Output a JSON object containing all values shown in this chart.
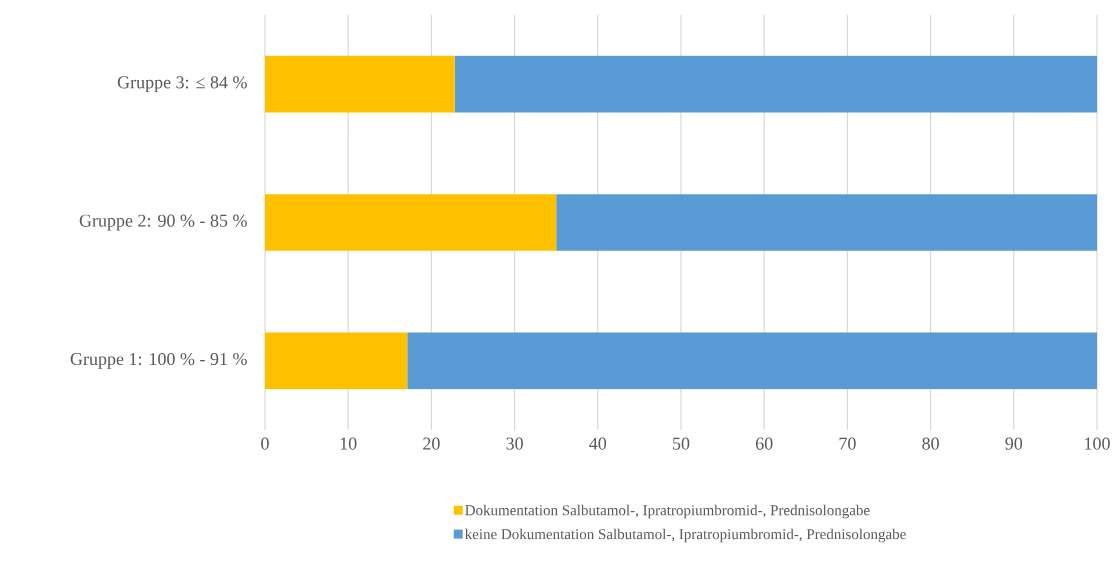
{
  "chart_data": {
    "type": "bar",
    "orientation": "horizontal",
    "stacked": true,
    "categories": [
      "Gruppe 3: ≤ 84 %",
      "Gruppe 2: 90 % - 85 %",
      "Gruppe 1: 100 % - 91 %"
    ],
    "series": [
      {
        "name": "Dokumentation Salbutamol-, Ipratropiumbromid-, Prednisolongabe",
        "color": "#ffc000",
        "values": [
          22.8,
          35.0,
          17.1
        ]
      },
      {
        "name": "keine Dokumentation Salbutamol-, Ipratropiumbromid-, Prednisolongabe",
        "color": "#5b9bd5",
        "values": [
          77.2,
          65.0,
          82.9
        ]
      }
    ],
    "xlim": [
      0,
      100
    ],
    "xticks": [
      0,
      10,
      20,
      30,
      40,
      50,
      60,
      70,
      80,
      90,
      100
    ],
    "grid": "x",
    "legend": "bottom"
  }
}
